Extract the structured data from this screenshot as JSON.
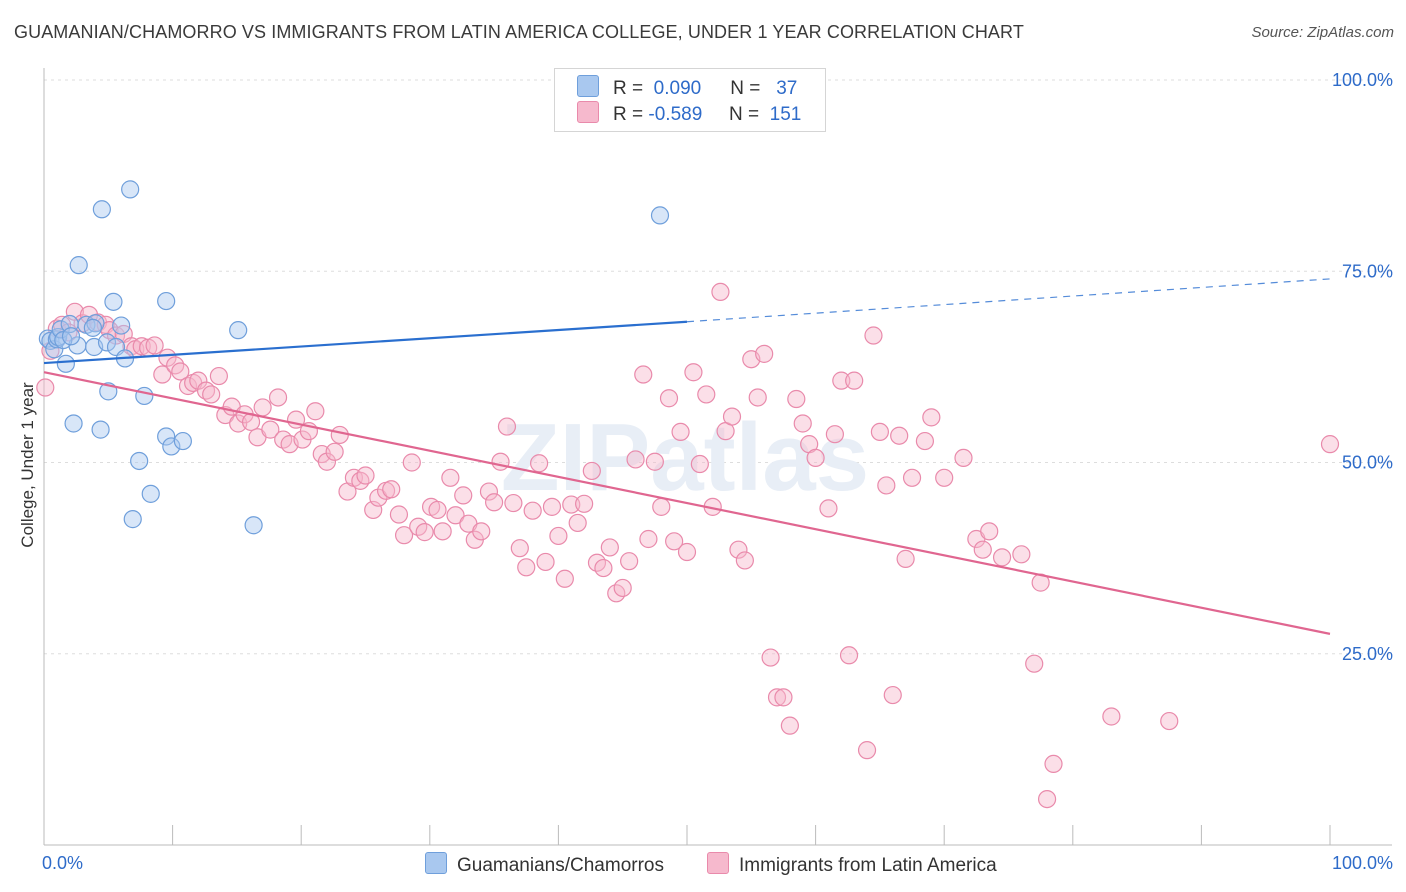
{
  "title": "GUAMANIAN/CHAMORRO VS IMMIGRANTS FROM LATIN AMERICA COLLEGE, UNDER 1 YEAR CORRELATION CHART",
  "source": "Source: ZipAtlas.com",
  "watermark": "ZIPatlas",
  "legend": {
    "row1": {
      "r_label": "R =",
      "r_value": "0.090",
      "n_label": "N =",
      "n_value": "37"
    },
    "row2": {
      "r_label": "R =",
      "r_value": "-0.589",
      "n_label": "N =",
      "n_value": "151"
    }
  },
  "colors": {
    "blue_fill": "#a9c8ef",
    "blue_stroke": "#6f9fdb",
    "blue_line": "#2a6fcf",
    "pink_fill": "#f6b9cd",
    "pink_stroke": "#e98aab",
    "pink_line": "#e06690",
    "tick_text": "#2e6bc9",
    "grid": "#dddddd"
  },
  "chart_data": {
    "type": "scatter",
    "title": "GUAMANIAN/CHAMORRO VS IMMIGRANTS FROM LATIN AMERICA COLLEGE, UNDER 1 YEAR CORRELATION CHART",
    "xlabel": "",
    "ylabel": "College, Under 1 year",
    "xlim": [
      0,
      100
    ],
    "ylim": [
      0,
      100
    ],
    "x_tick_labels": [
      "0.0%",
      "100.0%"
    ],
    "y_tick_labels": [
      "100.0%",
      "75.0%",
      "50.0%",
      "25.0%"
    ],
    "y_ticks": [
      100,
      75,
      50,
      25
    ],
    "grid": true,
    "legend_position": "top-center",
    "series": [
      {
        "name": "Guamanians/Chamorros",
        "color": "#a9c8ef",
        "points": [
          [
            0.3,
            66.2
          ],
          [
            0.5,
            65.9
          ],
          [
            0.8,
            64.8
          ],
          [
            1.0,
            66.1
          ],
          [
            1.1,
            66.4
          ],
          [
            1.3,
            67.4
          ],
          [
            1.7,
            62.9
          ],
          [
            2.0,
            68.1
          ],
          [
            2.3,
            55.1
          ],
          [
            2.6,
            65.3
          ],
          [
            2.7,
            75.8
          ],
          [
            3.3,
            68.0
          ],
          [
            3.9,
            65.1
          ],
          [
            4.0,
            68.2
          ],
          [
            4.4,
            54.3
          ],
          [
            4.5,
            83.1
          ],
          [
            4.9,
            65.7
          ],
          [
            5.0,
            59.3
          ],
          [
            5.4,
            71.0
          ],
          [
            5.6,
            65.1
          ],
          [
            6.0,
            67.9
          ],
          [
            6.3,
            63.6
          ],
          [
            6.7,
            85.7
          ],
          [
            6.9,
            42.6
          ],
          [
            7.4,
            50.2
          ],
          [
            7.8,
            58.7
          ],
          [
            8.3,
            45.9
          ],
          [
            9.5,
            53.4
          ],
          [
            9.5,
            71.1
          ],
          [
            9.9,
            52.1
          ],
          [
            10.8,
            52.8
          ],
          [
            15.1,
            67.3
          ],
          [
            16.3,
            41.8
          ],
          [
            47.9,
            82.3
          ],
          [
            1.5,
            66.0
          ],
          [
            2.1,
            66.5
          ],
          [
            3.8,
            67.6
          ]
        ]
      },
      {
        "name": "Immigrants from Latin America",
        "color": "#f6b9cd",
        "points": [
          [
            0.1,
            59.8
          ],
          [
            0.5,
            64.6
          ],
          [
            1.0,
            67.5
          ],
          [
            1.4,
            68.0
          ],
          [
            1.9,
            67.0
          ],
          [
            2.4,
            69.7
          ],
          [
            3.0,
            68.2
          ],
          [
            3.5,
            69.3
          ],
          [
            4.2,
            68.3
          ],
          [
            4.8,
            68.0
          ],
          [
            5.1,
            67.3
          ],
          [
            5.6,
            66.6
          ],
          [
            6.2,
            66.8
          ],
          [
            6.8,
            65.2
          ],
          [
            7.1,
            64.8
          ],
          [
            7.6,
            65.2
          ],
          [
            8.1,
            65.0
          ],
          [
            8.6,
            65.3
          ],
          [
            9.2,
            61.5
          ],
          [
            9.6,
            63.7
          ],
          [
            10.2,
            62.7
          ],
          [
            10.6,
            61.9
          ],
          [
            11.2,
            60.0
          ],
          [
            11.6,
            60.4
          ],
          [
            12.0,
            60.7
          ],
          [
            12.6,
            59.4
          ],
          [
            13.0,
            58.9
          ],
          [
            13.6,
            61.3
          ],
          [
            14.1,
            56.2
          ],
          [
            14.6,
            57.3
          ],
          [
            15.1,
            55.1
          ],
          [
            15.6,
            56.3
          ],
          [
            16.1,
            55.3
          ],
          [
            16.6,
            53.3
          ],
          [
            17.0,
            57.2
          ],
          [
            17.6,
            54.3
          ],
          [
            18.2,
            58.5
          ],
          [
            18.6,
            53.0
          ],
          [
            19.1,
            52.4
          ],
          [
            19.6,
            55.6
          ],
          [
            20.1,
            53.0
          ],
          [
            20.6,
            54.1
          ],
          [
            21.1,
            56.7
          ],
          [
            21.6,
            51.1
          ],
          [
            22.0,
            50.1
          ],
          [
            22.6,
            51.4
          ],
          [
            23.0,
            53.6
          ],
          [
            23.6,
            46.2
          ],
          [
            24.1,
            48.0
          ],
          [
            24.6,
            47.6
          ],
          [
            25.0,
            48.3
          ],
          [
            25.6,
            43.8
          ],
          [
            26.0,
            45.4
          ],
          [
            26.6,
            46.3
          ],
          [
            27.0,
            46.5
          ],
          [
            27.6,
            43.2
          ],
          [
            28.0,
            40.5
          ],
          [
            28.6,
            50.0
          ],
          [
            29.1,
            41.6
          ],
          [
            29.6,
            40.9
          ],
          [
            30.1,
            44.2
          ],
          [
            30.6,
            43.8
          ],
          [
            31.0,
            41.0
          ],
          [
            31.6,
            48.0
          ],
          [
            32.0,
            43.1
          ],
          [
            32.6,
            45.7
          ],
          [
            33.0,
            42.0
          ],
          [
            33.5,
            39.9
          ],
          [
            34.0,
            41.0
          ],
          [
            34.6,
            46.2
          ],
          [
            35.0,
            44.8
          ],
          [
            35.5,
            50.1
          ],
          [
            36.0,
            54.7
          ],
          [
            36.5,
            44.7
          ],
          [
            37.0,
            38.8
          ],
          [
            37.5,
            36.3
          ],
          [
            38.0,
            43.7
          ],
          [
            38.5,
            49.9
          ],
          [
            39.0,
            37.0
          ],
          [
            39.5,
            44.2
          ],
          [
            40.0,
            40.4
          ],
          [
            40.5,
            34.8
          ],
          [
            41.0,
            44.5
          ],
          [
            41.5,
            42.1
          ],
          [
            42.0,
            44.6
          ],
          [
            42.6,
            48.9
          ],
          [
            43.0,
            36.9
          ],
          [
            43.5,
            36.2
          ],
          [
            44.0,
            38.9
          ],
          [
            44.5,
            32.9
          ],
          [
            45.0,
            33.6
          ],
          [
            45.5,
            37.1
          ],
          [
            46.0,
            50.4
          ],
          [
            46.6,
            61.5
          ],
          [
            47.0,
            40.0
          ],
          [
            47.5,
            50.1
          ],
          [
            48.0,
            44.2
          ],
          [
            48.6,
            58.4
          ],
          [
            49.0,
            39.7
          ],
          [
            49.5,
            54.0
          ],
          [
            50.0,
            38.3
          ],
          [
            50.5,
            61.8
          ],
          [
            51.0,
            49.8
          ],
          [
            51.5,
            58.9
          ],
          [
            52.0,
            44.2
          ],
          [
            52.6,
            72.3
          ],
          [
            53.0,
            54.1
          ],
          [
            53.5,
            56.0
          ],
          [
            54.0,
            38.6
          ],
          [
            54.5,
            37.2
          ],
          [
            55.0,
            63.5
          ],
          [
            55.5,
            58.5
          ],
          [
            56.0,
            64.2
          ],
          [
            56.5,
            24.5
          ],
          [
            57.0,
            19.3
          ],
          [
            57.5,
            19.3
          ],
          [
            58.0,
            15.6
          ],
          [
            58.5,
            58.3
          ],
          [
            59.0,
            55.1
          ],
          [
            59.5,
            52.4
          ],
          [
            60.0,
            50.6
          ],
          [
            61.0,
            44.0
          ],
          [
            61.5,
            53.7
          ],
          [
            62.0,
            60.7
          ],
          [
            62.6,
            24.8
          ],
          [
            63.0,
            60.7
          ],
          [
            64.0,
            12.4
          ],
          [
            64.5,
            66.6
          ],
          [
            65.0,
            54.0
          ],
          [
            65.5,
            47.0
          ],
          [
            66.0,
            19.6
          ],
          [
            66.5,
            53.5
          ],
          [
            67.0,
            37.4
          ],
          [
            67.5,
            48.0
          ],
          [
            68.5,
            52.8
          ],
          [
            69.0,
            55.9
          ],
          [
            70.0,
            48.0
          ],
          [
            71.5,
            50.6
          ],
          [
            72.5,
            40.0
          ],
          [
            73.0,
            38.6
          ],
          [
            73.5,
            41.0
          ],
          [
            74.5,
            37.6
          ],
          [
            76.0,
            38.0
          ],
          [
            77.0,
            23.7
          ],
          [
            77.5,
            34.3
          ],
          [
            78.0,
            6.0
          ],
          [
            78.5,
            10.6
          ],
          [
            83.0,
            16.8
          ],
          [
            87.5,
            16.2
          ],
          [
            100.0,
            52.4
          ]
        ]
      }
    ],
    "trendlines": [
      {
        "series": "Guamanians/Chamorros",
        "from": [
          0,
          63.0
        ],
        "to": [
          50,
          68.4
        ],
        "dashed_extension_to": [
          100,
          74.0
        ]
      },
      {
        "series": "Immigrants from Latin America",
        "from": [
          0,
          61.8
        ],
        "to": [
          100,
          27.6
        ]
      }
    ]
  },
  "bottom_legend": {
    "item1": "Guamanians/Chamorros",
    "item2": "Immigrants from Latin America"
  }
}
